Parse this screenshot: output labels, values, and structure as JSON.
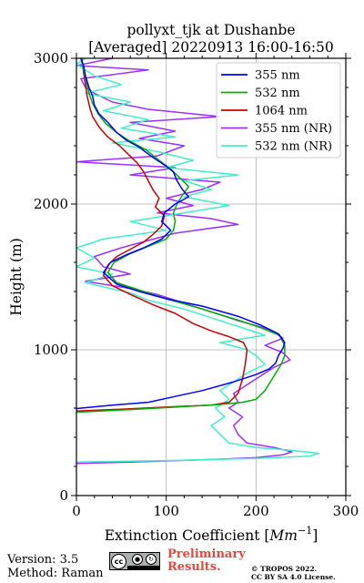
{
  "chart_data": {
    "type": "line",
    "title": "pollyxt_tjk at Dushanbe",
    "subtitle": "[Averaged] 20220913 16:00-16:50",
    "xlabel": "Extinction Coefficient [",
    "xlabel_unit": "Mm",
    "xlabel_exp": "−1",
    "xlabel_close": "]",
    "ylabel": "Height (m)",
    "xlim": [
      0,
      300
    ],
    "ylim": [
      0,
      3000
    ],
    "xticks": [
      "0",
      "100",
      "200",
      "300"
    ],
    "yticks": [
      "0",
      "1000",
      "2000",
      "3000"
    ],
    "grid": true,
    "legend_position": "top-right",
    "series": [
      {
        "name": "355 nm",
        "color": "#0000ff",
        "points": [
          [
            -20,
            600
          ],
          [
            0,
            597
          ],
          [
            40,
            620
          ],
          [
            80,
            640
          ],
          [
            110,
            680
          ],
          [
            140,
            720
          ],
          [
            175,
            780
          ],
          [
            200,
            830
          ],
          [
            215,
            870
          ],
          [
            222,
            910
          ],
          [
            225,
            960
          ],
          [
            230,
            1010
          ],
          [
            232,
            1050
          ],
          [
            225,
            1110
          ],
          [
            205,
            1170
          ],
          [
            180,
            1230
          ],
          [
            140,
            1300
          ],
          [
            100,
            1350
          ],
          [
            70,
            1400
          ],
          [
            45,
            1450
          ],
          [
            30,
            1530
          ],
          [
            38,
            1600
          ],
          [
            55,
            1650
          ],
          [
            75,
            1700
          ],
          [
            95,
            1760
          ],
          [
            105,
            1820
          ],
          [
            95,
            1880
          ],
          [
            98,
            1940
          ],
          [
            110,
            2000
          ],
          [
            125,
            2050
          ],
          [
            118,
            2100
          ],
          [
            112,
            2160
          ],
          [
            108,
            2220
          ],
          [
            100,
            2260
          ],
          [
            85,
            2320
          ],
          [
            70,
            2390
          ],
          [
            55,
            2440
          ],
          [
            45,
            2490
          ],
          [
            35,
            2560
          ],
          [
            25,
            2620
          ],
          [
            20,
            2680
          ],
          [
            18,
            2740
          ],
          [
            14,
            2800
          ],
          [
            10,
            2880
          ],
          [
            8,
            2950
          ],
          [
            5,
            3000
          ]
        ]
      },
      {
        "name": "532 nm",
        "color": "#00b000",
        "points": [
          [
            -20,
            575
          ],
          [
            0,
            572
          ],
          [
            60,
            590
          ],
          [
            120,
            610
          ],
          [
            160,
            625
          ],
          [
            185,
            640
          ],
          [
            200,
            660
          ],
          [
            210,
            720
          ],
          [
            218,
            800
          ],
          [
            228,
            900
          ],
          [
            232,
            960
          ],
          [
            232,
            1030
          ],
          [
            226,
            1100
          ],
          [
            206,
            1150
          ],
          [
            182,
            1200
          ],
          [
            140,
            1280
          ],
          [
            100,
            1350
          ],
          [
            70,
            1410
          ],
          [
            45,
            1460
          ],
          [
            35,
            1530
          ],
          [
            42,
            1600
          ],
          [
            60,
            1660
          ],
          [
            80,
            1710
          ],
          [
            100,
            1760
          ],
          [
            108,
            1820
          ],
          [
            110,
            1880
          ],
          [
            108,
            1940
          ],
          [
            112,
            2000
          ],
          [
            118,
            2060
          ],
          [
            125,
            2120
          ],
          [
            115,
            2180
          ],
          [
            105,
            2240
          ],
          [
            92,
            2300
          ],
          [
            78,
            2370
          ],
          [
            60,
            2430
          ],
          [
            45,
            2490
          ],
          [
            33,
            2550
          ],
          [
            24,
            2620
          ],
          [
            18,
            2690
          ],
          [
            14,
            2760
          ],
          [
            11,
            2840
          ],
          [
            8,
            2920
          ],
          [
            5,
            3000
          ]
        ]
      },
      {
        "name": "1064 nm",
        "color": "#cc0000",
        "points": [
          [
            -20,
            582
          ],
          [
            0,
            580
          ],
          [
            60,
            595
          ],
          [
            110,
            610
          ],
          [
            150,
            620
          ],
          [
            170,
            640
          ],
          [
            180,
            700
          ],
          [
            185,
            800
          ],
          [
            188,
            900
          ],
          [
            190,
            1000
          ],
          [
            186,
            1050
          ],
          [
            170,
            1090
          ],
          [
            150,
            1130
          ],
          [
            130,
            1180
          ],
          [
            110,
            1250
          ],
          [
            85,
            1310
          ],
          [
            60,
            1380
          ],
          [
            40,
            1440
          ],
          [
            30,
            1510
          ],
          [
            35,
            1580
          ],
          [
            45,
            1640
          ],
          [
            60,
            1690
          ],
          [
            75,
            1740
          ],
          [
            85,
            1790
          ],
          [
            95,
            1850
          ],
          [
            98,
            1920
          ],
          [
            88,
            1980
          ],
          [
            92,
            2040
          ],
          [
            85,
            2100
          ],
          [
            80,
            2160
          ],
          [
            75,
            2220
          ],
          [
            68,
            2280
          ],
          [
            58,
            2340
          ],
          [
            48,
            2400
          ],
          [
            35,
            2460
          ],
          [
            25,
            2530
          ],
          [
            18,
            2600
          ],
          [
            15,
            2660
          ],
          [
            12,
            2740
          ],
          [
            10,
            2820
          ],
          [
            8,
            2900
          ],
          [
            6,
            3000
          ]
        ]
      },
      {
        "name": "355 nm (NR)",
        "color": "#9b30ff",
        "points": [
          [
            0,
            220
          ],
          [
            60,
            230
          ],
          [
            140,
            245
          ],
          [
            200,
            260
          ],
          [
            230,
            280
          ],
          [
            240,
            300
          ],
          [
            220,
            330
          ],
          [
            190,
            360
          ],
          [
            180,
            420
          ],
          [
            175,
            480
          ],
          [
            185,
            540
          ],
          [
            170,
            600
          ],
          [
            180,
            640
          ],
          [
            175,
            700
          ],
          [
            190,
            760
          ],
          [
            205,
            820
          ],
          [
            220,
            880
          ],
          [
            238,
            930
          ],
          [
            230,
            980
          ],
          [
            210,
            1030
          ],
          [
            230,
            1080
          ],
          [
            215,
            1140
          ],
          [
            180,
            1200
          ],
          [
            150,
            1260
          ],
          [
            120,
            1320
          ],
          [
            90,
            1380
          ],
          [
            60,
            1420
          ],
          [
            10,
            1470
          ],
          [
            60,
            1520
          ],
          [
            30,
            1570
          ],
          [
            20,
            1640
          ],
          [
            50,
            1700
          ],
          [
            80,
            1750
          ],
          [
            110,
            1800
          ],
          [
            180,
            1860
          ],
          [
            150,
            1900
          ],
          [
            90,
            1940
          ],
          [
            130,
            1990
          ],
          [
            100,
            2040
          ],
          [
            140,
            2100
          ],
          [
            160,
            2150
          ],
          [
            60,
            2200
          ],
          [
            110,
            2250
          ],
          [
            0,
            2290
          ],
          [
            90,
            2330
          ],
          [
            120,
            2400
          ],
          [
            70,
            2450
          ],
          [
            110,
            2500
          ],
          [
            60,
            2560
          ],
          [
            160,
            2600
          ],
          [
            80,
            2650
          ],
          [
            40,
            2700
          ],
          [
            20,
            2760
          ],
          [
            10,
            2800
          ],
          [
            5,
            2860
          ],
          [
            80,
            2920
          ],
          [
            0,
            2950
          ],
          [
            40,
            3000
          ]
        ]
      },
      {
        "name": "532 nm (NR)",
        "color": "#40f0c8",
        "points": [
          [
            0,
            230
          ],
          [
            100,
            240
          ],
          [
            200,
            255
          ],
          [
            260,
            270
          ],
          [
            270,
            290
          ],
          [
            240,
            310
          ],
          [
            200,
            330
          ],
          [
            170,
            360
          ],
          [
            160,
            420
          ],
          [
            150,
            480
          ],
          [
            165,
            540
          ],
          [
            155,
            600
          ],
          [
            170,
            660
          ],
          [
            160,
            720
          ],
          [
            175,
            780
          ],
          [
            190,
            840
          ],
          [
            210,
            900
          ],
          [
            200,
            960
          ],
          [
            190,
            1000
          ],
          [
            160,
            1050
          ],
          [
            210,
            1100
          ],
          [
            180,
            1160
          ],
          [
            150,
            1220
          ],
          [
            120,
            1280
          ],
          [
            80,
            1340
          ],
          [
            60,
            1390
          ],
          [
            10,
            1460
          ],
          [
            40,
            1520
          ],
          [
            0,
            1570
          ],
          [
            20,
            1630
          ],
          [
            0,
            1700
          ],
          [
            30,
            1760
          ],
          [
            100,
            1820
          ],
          [
            60,
            1880
          ],
          [
            120,
            1940
          ],
          [
            170,
            1990
          ],
          [
            120,
            2050
          ],
          [
            150,
            2100
          ],
          [
            120,
            2160
          ],
          [
            180,
            2200
          ],
          [
            100,
            2250
          ],
          [
            130,
            2300
          ],
          [
            90,
            2360
          ],
          [
            40,
            2420
          ],
          [
            110,
            2460
          ],
          [
            50,
            2520
          ],
          [
            80,
            2580
          ],
          [
            30,
            2640
          ],
          [
            60,
            2700
          ],
          [
            10,
            2760
          ],
          [
            50,
            2820
          ],
          [
            20,
            2880
          ],
          [
            0,
            2960
          ],
          [
            10,
            3000
          ]
        ]
      }
    ]
  },
  "footer": {
    "version": "Version: 3.5",
    "method": "Method: Raman",
    "preliminary_line1": "Preliminary",
    "preliminary_line2": "Results.",
    "copyright_line1": "© TROPOS 2022.",
    "copyright_line2": "CC BY SA 4.0 License.",
    "license_badge": "cc"
  }
}
